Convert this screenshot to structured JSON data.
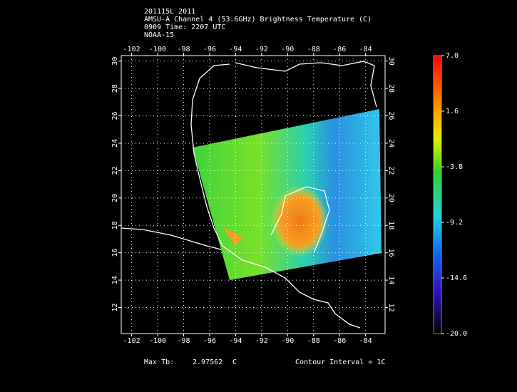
{
  "header": {
    "lines": [
      "201115L 2011",
      "AMSU-A Channel 4 (53.6GHz) Brightness Temperature (C)",
      "0909 Time: 2207 UTC",
      "NOAA-15"
    ]
  },
  "map": {
    "lonlim": [
      -102.8,
      -82.5
    ],
    "latlim": [
      10.1,
      30.4
    ],
    "lonticks": [
      -102,
      -100,
      -98,
      -96,
      -94,
      -92,
      -90,
      -88,
      -86,
      -84
    ],
    "latticks": [
      12,
      14,
      16,
      18,
      20,
      22,
      24,
      26,
      28,
      30
    ]
  },
  "colorbar": {
    "range": [
      -20,
      7
    ],
    "ticks": [
      {
        "value": 7,
        "label": "7.0"
      },
      1.6,
      -3.8,
      -9.2,
      -14.6,
      {
        "value": -20,
        "label": "-20.0"
      }
    ]
  },
  "footer": {
    "max_label": "Max Tb:",
    "max_value": 2.97562,
    "max_unit": "C",
    "contour": "Contour Interval = 1C"
  }
}
